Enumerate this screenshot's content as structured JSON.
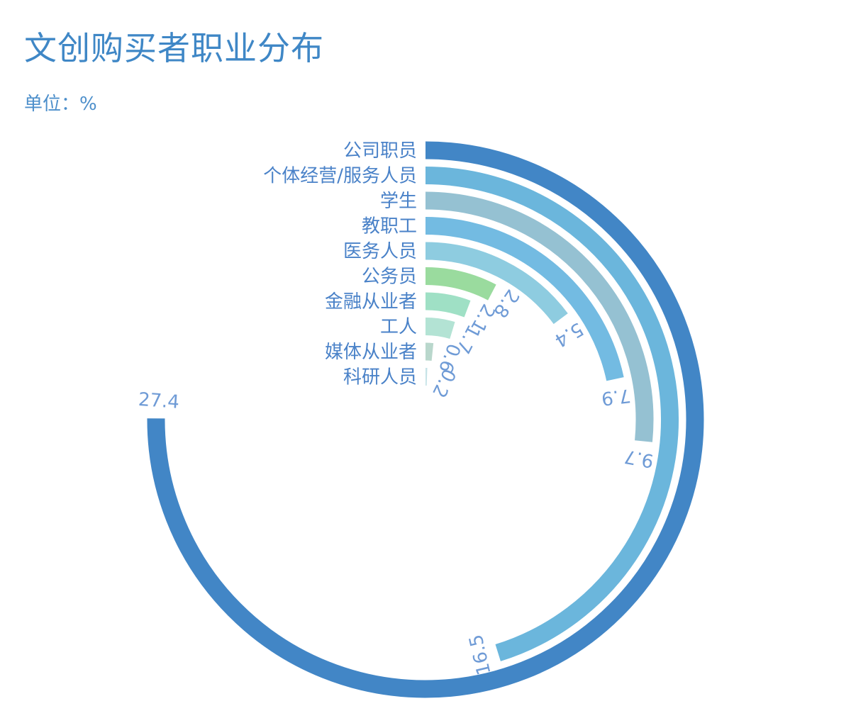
{
  "title": "文创购买者职业分布",
  "unit_label": "单位：%",
  "chart_data": {
    "type": "radial-bar",
    "title": "文创购买者职业分布",
    "unit": "单位：%",
    "max_value": 36.5,
    "categories": [
      "公司职员",
      "个体经营/服务人员",
      "学生",
      "教职工",
      "医务人员",
      "公务员",
      "金融从业者",
      "工人",
      "媒体从业者",
      "科研人员"
    ],
    "values": [
      27.4,
      16.5,
      9.7,
      7.9,
      5.4,
      2.8,
      2.1,
      1.7,
      0.6,
      0.2
    ],
    "colors": [
      "#4286c6",
      "#6bb6dc",
      "#95c1d2",
      "#73bbe2",
      "#8ecce0",
      "#9adb9e",
      "#9fe0c5",
      "#b3e3d4",
      "#b9d7cc",
      "#c6e3e7"
    ]
  }
}
